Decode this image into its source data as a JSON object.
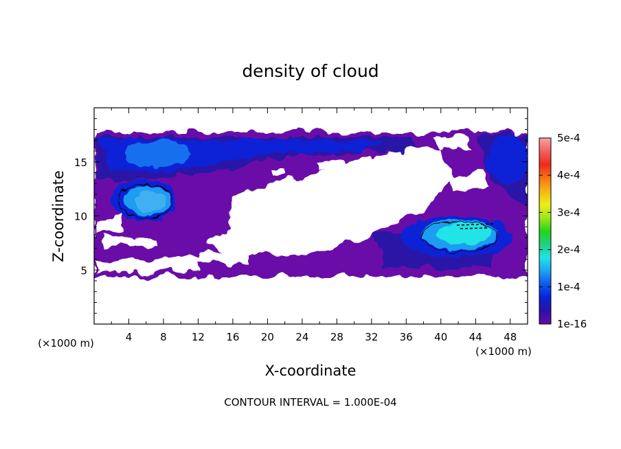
{
  "chart_data": {
    "type": "heatmap",
    "title": "density of cloud",
    "xlabel": "X-coordinate",
    "ylabel": "Z-coordinate",
    "x_unit": "(×1000 m)",
    "x_unit_right": "(×1000 m)",
    "xlim": [
      0,
      50
    ],
    "ylim": [
      0,
      20
    ],
    "x_ticks": [
      4,
      8,
      12,
      16,
      20,
      24,
      28,
      32,
      36,
      40,
      44,
      48
    ],
    "y_ticks": [
      5,
      10,
      15
    ],
    "footer": "CONTOUR INTERVAL = 1.000E-04",
    "colorbar": {
      "min": 1e-16,
      "max": 0.0005,
      "tick_labels": [
        "1e-16",
        "1e-4",
        "2e-4",
        "3e-4",
        "4e-4",
        "5e-4"
      ],
      "tick_values": [
        0,
        0.0001,
        0.0002,
        0.0003,
        0.0004,
        0.0005
      ],
      "colors": [
        "#6a0aa8",
        "#2a12a6",
        "#0a22d6",
        "#0f58f0",
        "#1ea3f0",
        "#21e3e6",
        "#20d080",
        "#27d31a",
        "#9fe61a",
        "#eeee14",
        "#f6b614",
        "#f47414",
        "#ee2a1a",
        "#f36060",
        "#f7a3a3"
      ]
    },
    "cloud_layer_z": [
      4.5,
      17.5
    ],
    "features": [
      {
        "label": "upper-left high density",
        "x": 6.5,
        "z": 11.2,
        "value": 0.00012
      },
      {
        "label": "lower-right high density",
        "x": 42,
        "z": 8.5,
        "value": 0.00016
      },
      {
        "label": "upper band",
        "x": 9,
        "z": 16,
        "value": 9e-05
      },
      {
        "label": "upper-right patch",
        "x": 47,
        "z": 15.5,
        "value": 7e-05
      },
      {
        "label": "central clear region",
        "x": 26,
        "z": 11,
        "value": 0
      }
    ]
  }
}
